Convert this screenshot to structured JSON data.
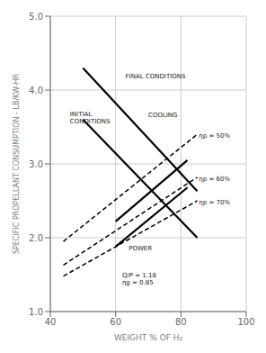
{
  "chart_data": {
    "type": "line",
    "xlabel": "WEIGHT % OF H₂",
    "ylabel": "SPECIFIC PROPELLANT CONSUMPTION - LB/KW-HR",
    "xlim": [
      40,
      100
    ],
    "ylim": [
      1.0,
      5.0
    ],
    "xticks": [
      40,
      60,
      80,
      100
    ],
    "yticks": [
      {
        "value": 1.0,
        "label": "1.0"
      },
      {
        "value": 2.0,
        "label": "2.0"
      },
      {
        "value": 3.0,
        "label": "3.0"
      },
      {
        "value": 4.0,
        "label": "4.0"
      },
      {
        "value": 5.0,
        "label": "5.0"
      }
    ],
    "grid": true,
    "series": [
      {
        "x": [
          50,
          85
        ],
        "values": [
          4.3,
          2.63
        ],
        "color": "black",
        "line_style": "solid"
      },
      {
        "x": [
          50,
          85
        ],
        "values": [
          3.6,
          2.0
        ],
        "color": "black",
        "line_style": "solid"
      },
      {
        "x": [
          60,
          82
        ],
        "values": [
          2.22,
          3.05
        ],
        "color": "black",
        "line_style": "solid"
      },
      {
        "x": [
          60,
          82
        ],
        "values": [
          1.88,
          2.68
        ],
        "color": "black",
        "line_style": "solid"
      },
      {
        "x": [
          44,
          85
        ],
        "values": [
          1.95,
          3.4
        ],
        "color": "black",
        "line_style": "dashed"
      },
      {
        "x": [
          44,
          85
        ],
        "values": [
          1.63,
          2.82
        ],
        "color": "black",
        "line_style": "dashed"
      },
      {
        "x": [
          44,
          85
        ],
        "values": [
          1.48,
          2.5
        ],
        "color": "black",
        "line_style": "dashed"
      }
    ],
    "annotations": [
      {
        "text": "FINAL CONDITIONS",
        "x": 63,
        "y": 4.15
      },
      {
        "text": "INITIAL\nCONDITIONS",
        "x": 46,
        "y": 3.72
      },
      {
        "text": "COOLING",
        "x": 70,
        "y": 3.62
      },
      {
        "text": "POWER",
        "x": 64,
        "y": 1.82
      },
      {
        "text": "ηp = 50%",
        "x": 85.5,
        "y": 3.38
      },
      {
        "text": "ηp = 60%",
        "x": 85.5,
        "y": 2.8
      },
      {
        "text": "ηp = 70%",
        "x": 85.5,
        "y": 2.48
      },
      {
        "text": "Q/P = 1.18\nηg = 0.85",
        "x": 62,
        "y": 1.35
      }
    ]
  }
}
